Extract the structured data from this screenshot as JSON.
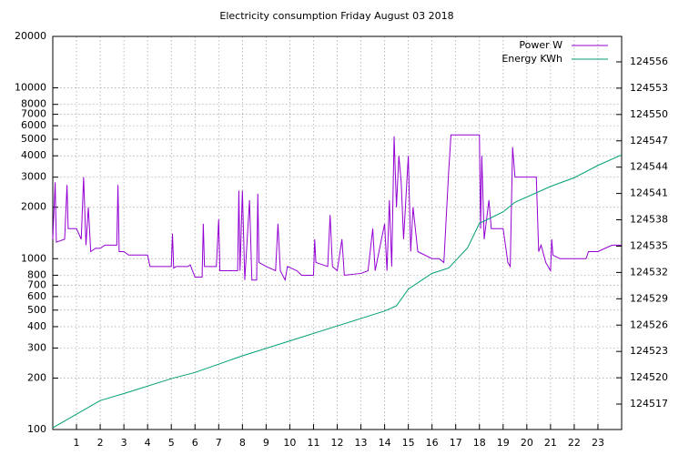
{
  "chart_data": {
    "type": "line",
    "title": "Electricity consumption Friday August 03 2018",
    "xlim": [
      0,
      24
    ],
    "xticks": [
      1,
      2,
      3,
      4,
      5,
      6,
      7,
      8,
      9,
      10,
      11,
      12,
      13,
      14,
      15,
      16,
      17,
      18,
      19,
      20,
      21,
      22,
      23
    ],
    "ylim": [
      100,
      20000
    ],
    "ylog": true,
    "yticks": [
      100,
      200,
      300,
      400,
      500,
      600,
      700,
      800,
      1000,
      2000,
      3000,
      4000,
      5000,
      6000,
      7000,
      8000,
      10000,
      20000
    ],
    "y2lim": [
      124514.1,
      124558.9
    ],
    "y2ticks": [
      124517,
      124520,
      124523,
      124526,
      124529,
      124532,
      124535,
      124538,
      124541,
      124544,
      124547,
      124550,
      124553,
      124556
    ],
    "grid": true,
    "legend": "top right",
    "series": [
      {
        "name": "Power W",
        "color": "#9400d3",
        "axis": "y",
        "x": [
          0,
          0.1,
          0.15,
          0.5,
          0.6,
          0.65,
          1.0,
          1.2,
          1.3,
          1.4,
          1.5,
          1.6,
          1.8,
          2.0,
          2.2,
          2.7,
          2.75,
          2.8,
          3.0,
          3.2,
          4.0,
          4.1,
          5.0,
          5.05,
          5.1,
          5.2,
          5.7,
          5.8,
          6.0,
          6.3,
          6.35,
          6.4,
          6.9,
          7.0,
          7.05,
          7.8,
          7.85,
          7.9,
          8.0,
          8.1,
          8.3,
          8.4,
          8.6,
          8.65,
          8.7,
          9.0,
          9.4,
          9.5,
          9.6,
          9.8,
          9.9,
          10.3,
          10.5,
          11.0,
          11.05,
          11.1,
          11.6,
          11.7,
          11.8,
          12.0,
          12.2,
          12.3,
          13.0,
          13.3,
          13.5,
          13.6,
          14.0,
          14.1,
          14.2,
          14.3,
          14.4,
          14.5,
          14.6,
          14.7,
          14.8,
          15.0,
          15.1,
          15.2,
          15.4,
          16.0,
          16.3,
          16.5,
          16.7,
          16.8,
          18.0,
          18.05,
          18.1,
          18.2,
          18.4,
          18.5,
          19.0,
          19.2,
          19.3,
          19.4,
          19.5,
          20.0,
          20.4,
          20.5,
          20.6,
          20.8,
          21.0,
          21.05,
          21.1,
          21.4,
          22.0,
          22.5,
          22.6,
          23.0,
          23.3,
          23.6,
          24
        ],
        "values": [
          1300,
          2800,
          1250,
          1300,
          2700,
          1500,
          1500,
          1300,
          3000,
          1200,
          2000,
          1100,
          1150,
          1150,
          1200,
          1200,
          2700,
          1100,
          1100,
          1050,
          1050,
          900,
          900,
          1400,
          880,
          900,
          900,
          920,
          780,
          780,
          1600,
          900,
          900,
          1700,
          850,
          850,
          2500,
          850,
          2500,
          750,
          2200,
          750,
          750,
          2400,
          950,
          900,
          850,
          1600,
          850,
          750,
          900,
          850,
          800,
          800,
          1300,
          950,
          900,
          1800,
          900,
          850,
          1300,
          800,
          820,
          850,
          1500,
          850,
          1600,
          850,
          2200,
          900,
          5200,
          2000,
          4000,
          2800,
          1300,
          4000,
          1100,
          2000,
          1100,
          1000,
          1000,
          950,
          3200,
          5300,
          5300,
          1500,
          4000,
          1300,
          2200,
          1500,
          1500,
          950,
          900,
          4500,
          3000,
          3000,
          3000,
          1100,
          1200,
          950,
          850,
          1300,
          1050,
          1000,
          1000,
          1000,
          1100,
          1100,
          1150,
          1200,
          1200
        ]
      },
      {
        "name": "Energy KWh",
        "color": "#009e73",
        "axis": "y2",
        "x": [
          0,
          2,
          3,
          5,
          6,
          8,
          10,
          12,
          14,
          14.5,
          15,
          16,
          16.7,
          17.5,
          18,
          19,
          19.5,
          21,
          22,
          23,
          24
        ],
        "values": [
          124514.3,
          124517.4,
          124518.2,
          124519.9,
          124520.6,
          124522.5,
          124524.2,
          124525.9,
          124527.6,
          124528.2,
          124530.1,
          124531.9,
          124532.5,
          124534.8,
          124537.6,
          124538.9,
          124540.0,
          124541.8,
          124542.8,
          124544.2,
          124545.4
        ]
      }
    ]
  }
}
